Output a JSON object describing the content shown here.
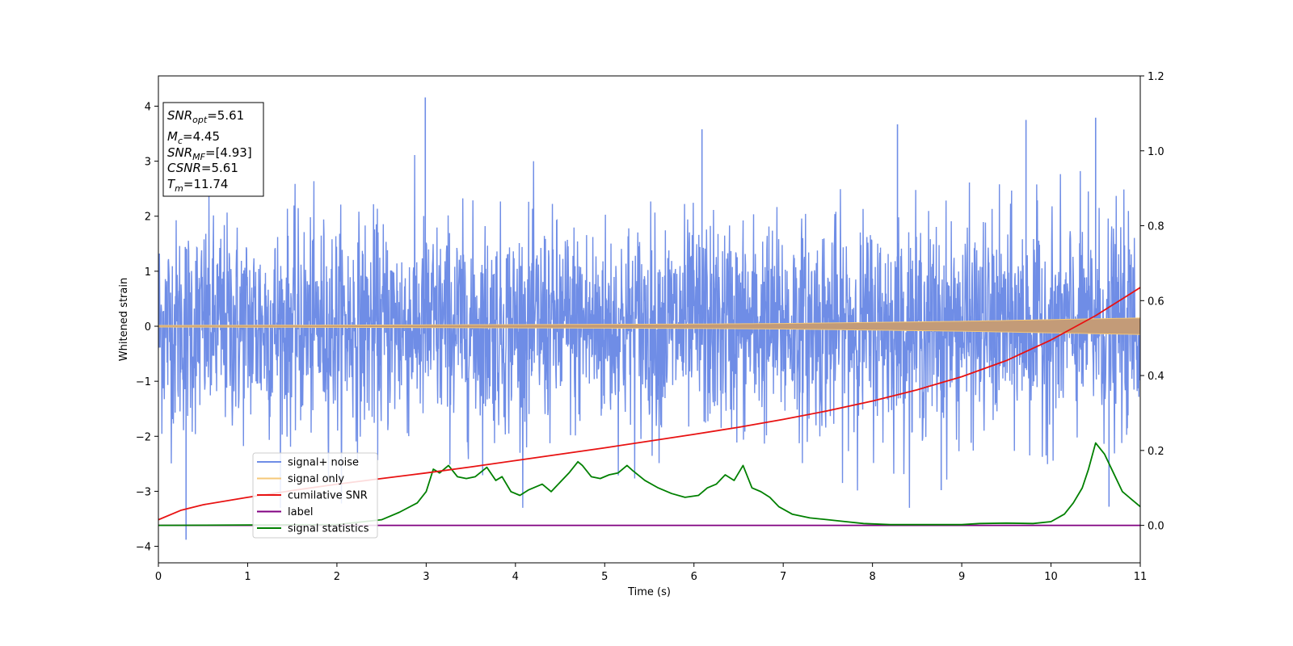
{
  "chart_data": {
    "type": "line",
    "title": "",
    "xlabel": "Time (s)",
    "ylabel": "Whitened strain",
    "xlim": [
      0,
      11
    ],
    "ylim": [
      -4.3,
      4.55
    ],
    "y2lim": [
      -0.1,
      1.2
    ],
    "x_ticks": [
      0,
      1,
      2,
      3,
      4,
      5,
      6,
      7,
      8,
      9,
      10,
      11
    ],
    "y_ticks": [
      -4,
      -3,
      -2,
      -1,
      0,
      1,
      2,
      3,
      4
    ],
    "y2_ticks": [
      "0.0",
      "0.2",
      "0.4",
      "0.6",
      "0.8",
      "1.0",
      "1.2"
    ],
    "grid": false,
    "legend_position": "lower-left",
    "colors": {
      "signal_noise": "#6f8de6",
      "signal_only": "#f5c878",
      "signal_only_fill": "#c39b78",
      "cumulative_snr": "#e81212",
      "label": "#800080",
      "signal_statistics": "#008000"
    },
    "series": [
      {
        "name": "signal+ noise",
        "axis": "left",
        "kind": "noise",
        "sample_rate_hz": 256,
        "std": 0.95,
        "seed": 12345,
        "peaks": [
          {
            "x": 0.31,
            "y": -3.88
          },
          {
            "x": 2.99,
            "y": 4.16
          },
          {
            "x": 6.09,
            "y": 3.58
          },
          {
            "x": 8.28,
            "y": 3.67
          },
          {
            "x": 8.77,
            "y": -2.98
          },
          {
            "x": 9.72,
            "y": 3.75
          },
          {
            "x": 10.5,
            "y": 3.79
          },
          {
            "x": 10.65,
            "y": -3.28
          }
        ]
      },
      {
        "name": "signal only",
        "axis": "left",
        "kind": "chirp",
        "envelope": {
          "x": [
            0,
            2,
            4,
            6,
            7,
            8,
            9,
            10,
            11
          ],
          "y": [
            0.015,
            0.02,
            0.03,
            0.04,
            0.05,
            0.07,
            0.09,
            0.12,
            0.15
          ]
        }
      },
      {
        "name": "cumilative SNR",
        "axis": "right",
        "x": [
          0,
          0.25,
          0.5,
          1,
          1.5,
          2,
          2.5,
          3,
          3.5,
          4,
          4.5,
          5,
          5.5,
          6,
          6.5,
          7,
          7.5,
          8,
          8.5,
          9,
          9.5,
          10,
          10.5,
          11
        ],
        "y": [
          0.015,
          0.04,
          0.055,
          0.075,
          0.093,
          0.11,
          0.125,
          0.14,
          0.156,
          0.173,
          0.19,
          0.207,
          0.225,
          0.243,
          0.262,
          0.283,
          0.306,
          0.332,
          0.362,
          0.397,
          0.44,
          0.495,
          0.56,
          0.635
        ]
      },
      {
        "name": "label",
        "axis": "right",
        "x": [
          0,
          11
        ],
        "y": [
          0,
          0
        ]
      },
      {
        "name": "signal statistics",
        "axis": "right",
        "x": [
          0,
          1,
          2,
          2.5,
          2.7,
          2.9,
          3.0,
          3.08,
          3.15,
          3.25,
          3.35,
          3.45,
          3.55,
          3.68,
          3.78,
          3.85,
          3.95,
          4.05,
          4.15,
          4.3,
          4.4,
          4.5,
          4.6,
          4.7,
          4.75,
          4.85,
          4.95,
          5.05,
          5.15,
          5.25,
          5.32,
          5.45,
          5.6,
          5.75,
          5.9,
          6.05,
          6.15,
          6.25,
          6.35,
          6.45,
          6.55,
          6.65,
          6.75,
          6.85,
          6.95,
          7.1,
          7.3,
          7.5,
          7.7,
          7.9,
          8.2,
          8.5,
          8.8,
          9.0,
          9.2,
          9.5,
          9.8,
          10.0,
          10.15,
          10.25,
          10.35,
          10.42,
          10.5,
          10.6,
          10.7,
          10.8,
          10.9,
          11.0
        ],
        "y": [
          0.0,
          0.001,
          0.002,
          0.015,
          0.035,
          0.06,
          0.09,
          0.15,
          0.14,
          0.16,
          0.13,
          0.125,
          0.13,
          0.155,
          0.12,
          0.13,
          0.09,
          0.08,
          0.095,
          0.11,
          0.09,
          0.115,
          0.14,
          0.17,
          0.16,
          0.13,
          0.125,
          0.135,
          0.14,
          0.16,
          0.145,
          0.12,
          0.1,
          0.085,
          0.075,
          0.08,
          0.1,
          0.11,
          0.135,
          0.12,
          0.16,
          0.1,
          0.09,
          0.075,
          0.05,
          0.03,
          0.02,
          0.015,
          0.01,
          0.005,
          0.002,
          0.002,
          0.002,
          0.002,
          0.005,
          0.006,
          0.005,
          0.01,
          0.03,
          0.06,
          0.1,
          0.15,
          0.22,
          0.19,
          0.14,
          0.09,
          0.07,
          0.05
        ]
      }
    ],
    "annotation_lines": [
      {
        "var": "SNR",
        "sub": "opt",
        "rest": "=5.61"
      },
      {
        "var": "M",
        "sub": "c",
        "rest": "=4.45"
      },
      {
        "var": "SNR",
        "sub": "MF",
        "rest": "=[4.93]"
      },
      {
        "var": "CSNR",
        "sub": "",
        "rest": "=5.61"
      },
      {
        "var": "T",
        "sub": "m",
        "rest": "=11.74"
      }
    ]
  }
}
